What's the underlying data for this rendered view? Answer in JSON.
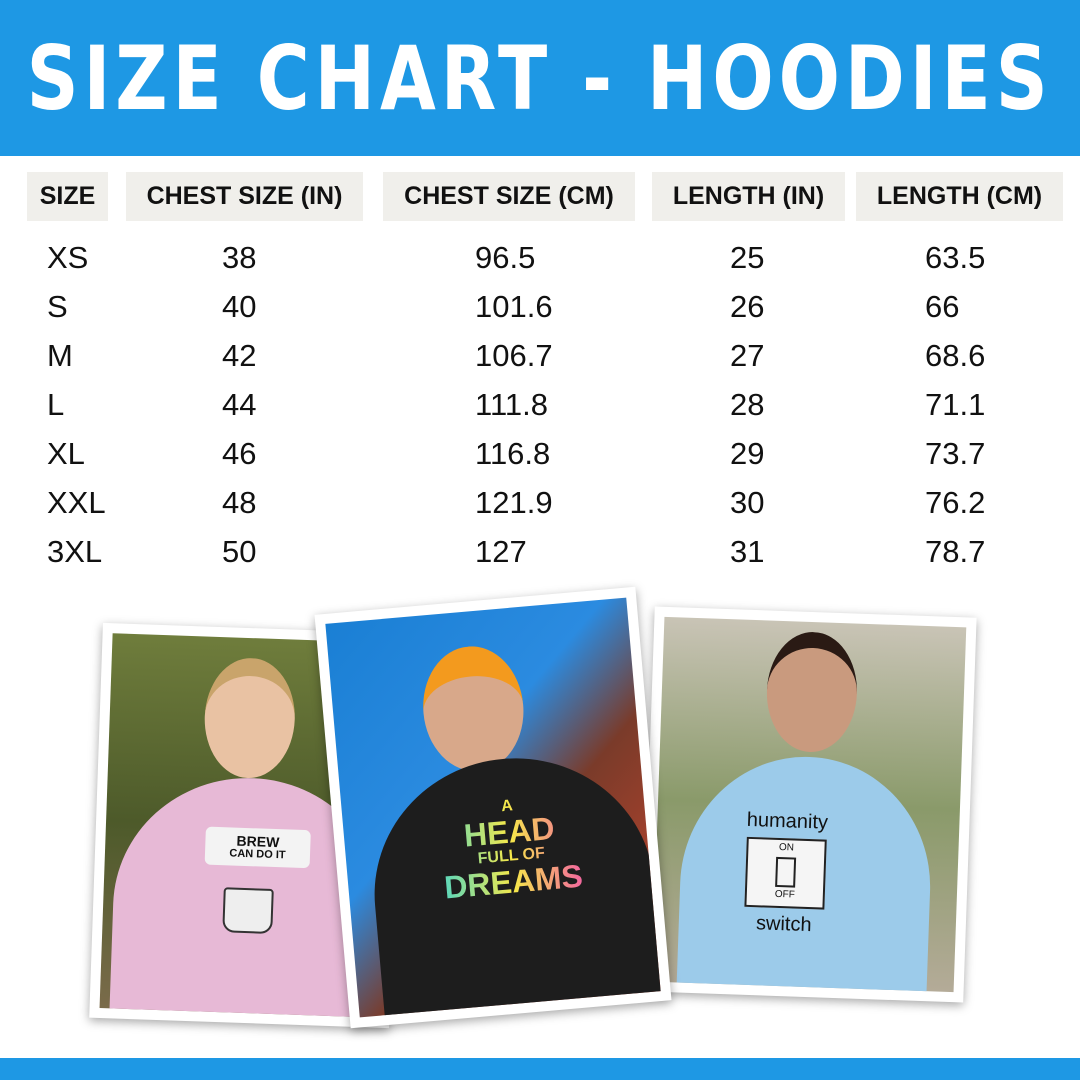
{
  "title": "SIZE CHART - HOODIES",
  "colors": {
    "brand_blue": "#1e98e4",
    "header_bg": "#f0efeb"
  },
  "table": {
    "headers": [
      "SIZE",
      "CHEST SIZE (IN)",
      "CHEST SIZE (CM)",
      "LENGTH (IN)",
      "LENGTH (CM)"
    ],
    "rows": [
      [
        "XS",
        "38",
        "96.5",
        "25",
        "63.5"
      ],
      [
        "S",
        "40",
        "101.6",
        "26",
        "66"
      ],
      [
        "M",
        "42",
        "106.7",
        "27",
        "68.6"
      ],
      [
        "L",
        "44",
        "111.8",
        "28",
        "71.1"
      ],
      [
        "XL",
        "46",
        "116.8",
        "29",
        "73.7"
      ],
      [
        "XXL",
        "48",
        "121.9",
        "30",
        "76.2"
      ],
      [
        "3XL",
        "50",
        "127",
        "31",
        "78.7"
      ]
    ]
  },
  "photos": [
    {
      "hoodie_color": "#e7b9d6",
      "print": [
        "BREW",
        "CAN DO IT"
      ]
    },
    {
      "hoodie_color": "#1d1d1d",
      "print": [
        "A",
        "HEAD",
        "FULL OF",
        "DREAMS"
      ]
    },
    {
      "hoodie_color": "#9ccbea",
      "print": [
        "humanity",
        "ON",
        "OFF",
        "switch"
      ]
    }
  ]
}
